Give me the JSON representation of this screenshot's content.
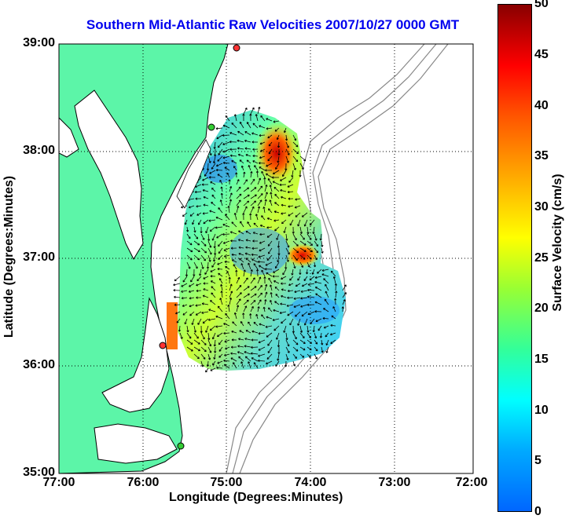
{
  "title": "Southern Mid-Atlantic Raw Velocities 2007/10/27 0000 GMT",
  "xaxis": {
    "label": "Longitude (Degrees:Minutes)",
    "ticks": [
      "77:00",
      "76:00",
      "75:00",
      "74:00",
      "73:00",
      "72:00"
    ]
  },
  "yaxis": {
    "label": "Latitude (Degrees:Minutes)",
    "ticks": [
      "39:00",
      "38:00",
      "37:00",
      "36:00",
      "35:00"
    ]
  },
  "colorbar": {
    "label": "Surface Velocity (cm/s)",
    "ticks": [
      "50",
      "45",
      "40",
      "35",
      "30",
      "25",
      "20",
      "15",
      "10",
      "5",
      "0"
    ]
  },
  "colors": {
    "land": "#5cf5a8",
    "coast": "#000000",
    "title": "#0000ee",
    "bathymetry": "#888888",
    "station": "#ff3333"
  }
}
